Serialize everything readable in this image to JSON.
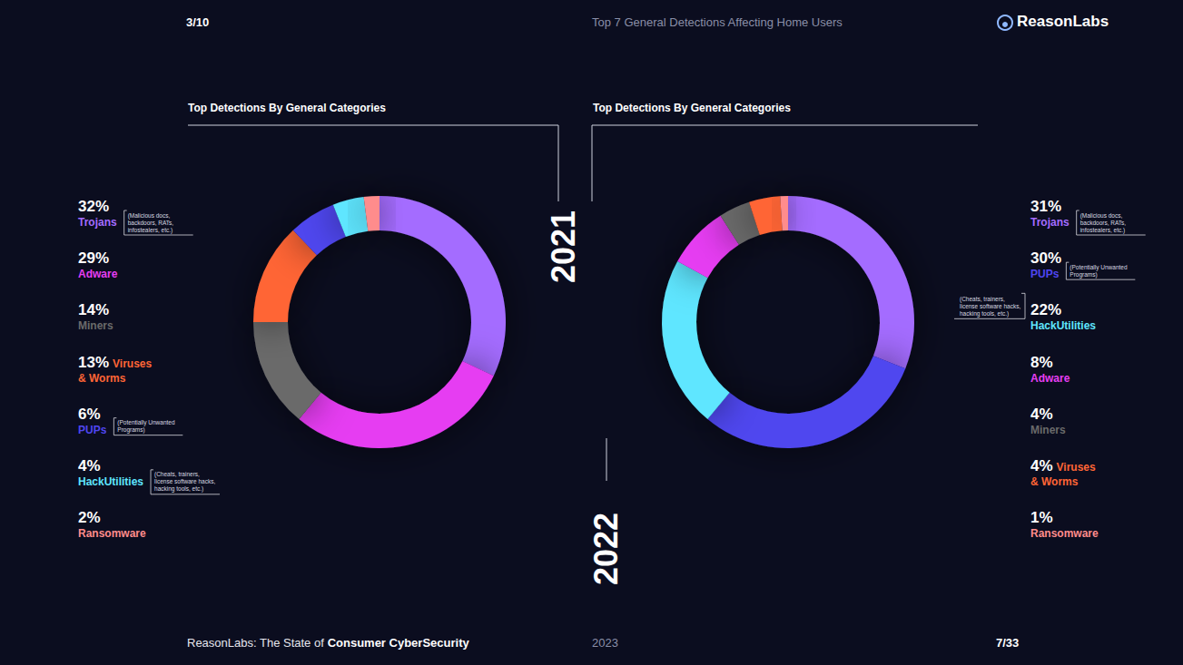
{
  "header": {
    "page": "3/10",
    "title": "Top 7 General Detections Affecting Home Users",
    "logo": "ReasonLabs"
  },
  "footer": {
    "text": "ReasonLabs: The State of ",
    "emphasis": "Consumer CyberSecurity",
    "year": "2023",
    "page": "7/33"
  },
  "chart_data": [
    {
      "type": "pie",
      "title": "Top Detections By General Categories",
      "year": "2021",
      "categories": [
        "Trojans",
        "Adware",
        "Miners",
        "Viruses & Worms",
        "PUPs",
        "HackUtilities",
        "Ransomware"
      ],
      "values": [
        32,
        29,
        14,
        13,
        6,
        4,
        2
      ],
      "value_labels": [
        "32%",
        "29%",
        "14%",
        "13%",
        "6%",
        "4%",
        "2%"
      ],
      "colors": [
        "#a46cff",
        "#e63ef2",
        "#6a6a6a",
        "#ff6536",
        "#4f46ef",
        "#5fe6ff",
        "#ff8c8c"
      ],
      "annotations": [
        {
          "category": "Trojans",
          "text": "(Malicious docs, backdoors, RATs, infostealers, etc.)"
        },
        {
          "category": "PUPs",
          "text": "(Potentially Unwanted Programs)"
        },
        {
          "category": "HackUtilities",
          "text": "(Cheats, trainers, license software hacks, hacking tools, etc.)"
        }
      ]
    },
    {
      "type": "pie",
      "title": "Top Detections By General Categories",
      "year": "2022",
      "categories": [
        "Trojans",
        "PUPs",
        "HackUtilities",
        "Adware",
        "Miners",
        "Viruses & Worms",
        "Ransomware"
      ],
      "values": [
        31,
        30,
        22,
        8,
        4,
        4,
        1
      ],
      "value_labels": [
        "31%",
        "30%",
        "22%",
        "8%",
        "4%",
        "4%",
        "1%"
      ],
      "colors": [
        "#a46cff",
        "#4f46ef",
        "#5fe6ff",
        "#e63ef2",
        "#6a6a6a",
        "#ff6536",
        "#ff8c8c"
      ],
      "annotations": [
        {
          "category": "Trojans",
          "text": "(Malicious docs, backdoors, RATs, infostealers, etc.)"
        },
        {
          "category": "PUPs",
          "text": "(Potentially Unwanted Programs)"
        },
        {
          "category": "HackUtilities",
          "text": "(Cheats, trainers, license software hacks, hacking tools, etc.)"
        }
      ]
    }
  ]
}
